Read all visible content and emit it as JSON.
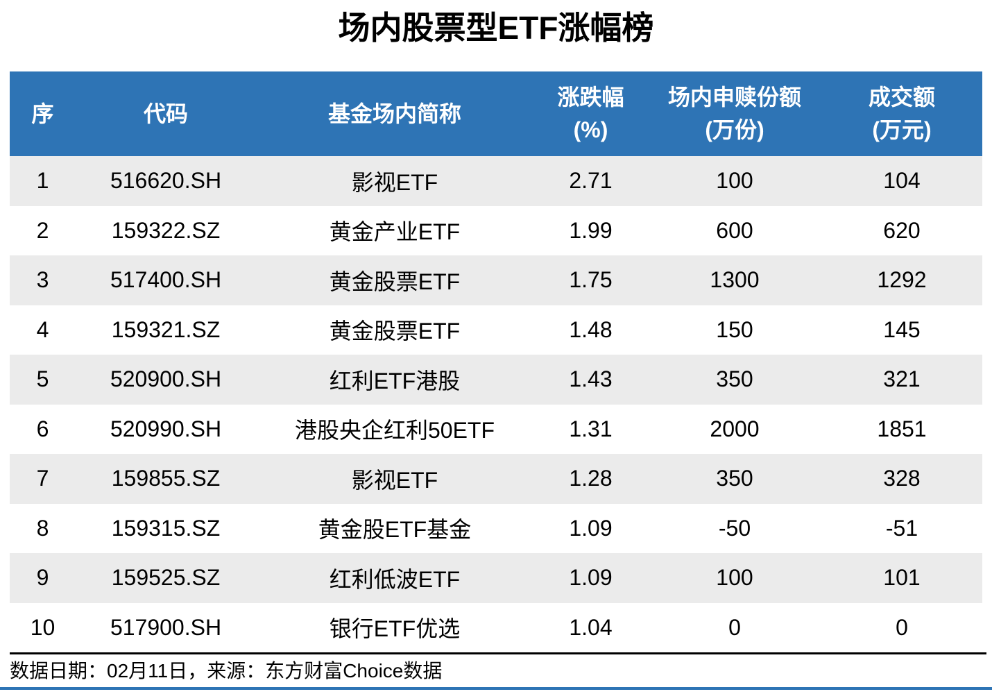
{
  "page": {
    "title": "场内股票型ETF涨幅榜"
  },
  "table": {
    "headers": [
      {
        "line1": "序",
        "line2": ""
      },
      {
        "line1": "代码",
        "line2": ""
      },
      {
        "line1": "基金场内简称",
        "line2": ""
      },
      {
        "line1": "涨跌幅",
        "line2": "(%)"
      },
      {
        "line1": "场内申赎份额",
        "line2": "(万份)"
      },
      {
        "line1": "成交额",
        "line2": "(万元)"
      }
    ],
    "rows": [
      {
        "num": "1",
        "code": "516620.SH",
        "name": "影视ETF",
        "change": "2.71",
        "shares": "100",
        "turnover": "104"
      },
      {
        "num": "2",
        "code": "159322.SZ",
        "name": "黄金产业ETF",
        "change": "1.99",
        "shares": "600",
        "turnover": "620"
      },
      {
        "num": "3",
        "code": "517400.SH",
        "name": "黄金股票ETF",
        "change": "1.75",
        "shares": "1300",
        "turnover": "1292"
      },
      {
        "num": "4",
        "code": "159321.SZ",
        "name": "黄金股票ETF",
        "change": "1.48",
        "shares": "150",
        "turnover": "145"
      },
      {
        "num": "5",
        "code": "520900.SH",
        "name": "红利ETF港股",
        "change": "1.43",
        "shares": "350",
        "turnover": "321"
      },
      {
        "num": "6",
        "code": "520990.SH",
        "name": "港股央企红利50ETF",
        "change": "1.31",
        "shares": "2000",
        "turnover": "1851"
      },
      {
        "num": "7",
        "code": "159855.SZ",
        "name": "影视ETF",
        "change": "1.28",
        "shares": "350",
        "turnover": "328"
      },
      {
        "num": "8",
        "code": "159315.SZ",
        "name": "黄金股ETF基金",
        "change": "1.09",
        "shares": "-50",
        "turnover": "-51"
      },
      {
        "num": "9",
        "code": "159525.SZ",
        "name": "红利低波ETF",
        "change": "1.09",
        "shares": "100",
        "turnover": "101"
      },
      {
        "num": "10",
        "code": "517900.SH",
        "name": "银行ETF优选",
        "change": "1.04",
        "shares": "0",
        "turnover": "0"
      }
    ]
  },
  "footer": {
    "text": "数据日期：02月11日，来源：东方财富Choice数据"
  },
  "colors": {
    "header_bg": "#2E74B5",
    "stripe": "#EBEBEB",
    "divider": "#000000",
    "accent_line": "#2E74B5"
  },
  "chart_data": {
    "type": "table",
    "title": "场内股票型ETF涨幅榜",
    "columns": [
      "序",
      "代码",
      "基金场内简称",
      "涨跌幅(%)",
      "场内申赎份额(万份)",
      "成交额(万元)"
    ],
    "rows": [
      [
        1,
        "516620.SH",
        "影视ETF",
        2.71,
        100,
        104
      ],
      [
        2,
        "159322.SZ",
        "黄金产业ETF",
        1.99,
        600,
        620
      ],
      [
        3,
        "517400.SH",
        "黄金股票ETF",
        1.75,
        1300,
        1292
      ],
      [
        4,
        "159321.SZ",
        "黄金股票ETF",
        1.48,
        150,
        145
      ],
      [
        5,
        "520900.SH",
        "红利ETF港股",
        1.43,
        350,
        321
      ],
      [
        6,
        "520990.SH",
        "港股央企红利50ETF",
        1.31,
        2000,
        1851
      ],
      [
        7,
        "159855.SZ",
        "影视ETF",
        1.28,
        350,
        328
      ],
      [
        8,
        "159315.SZ",
        "黄金股ETF基金",
        1.09,
        -50,
        -51
      ],
      [
        9,
        "159525.SZ",
        "红利低波ETF",
        1.09,
        100,
        101
      ],
      [
        10,
        "517900.SH",
        "银行ETF优选",
        1.04,
        0,
        0
      ]
    ],
    "source_note": "数据日期：02月11日，来源：东方财富Choice数据"
  }
}
